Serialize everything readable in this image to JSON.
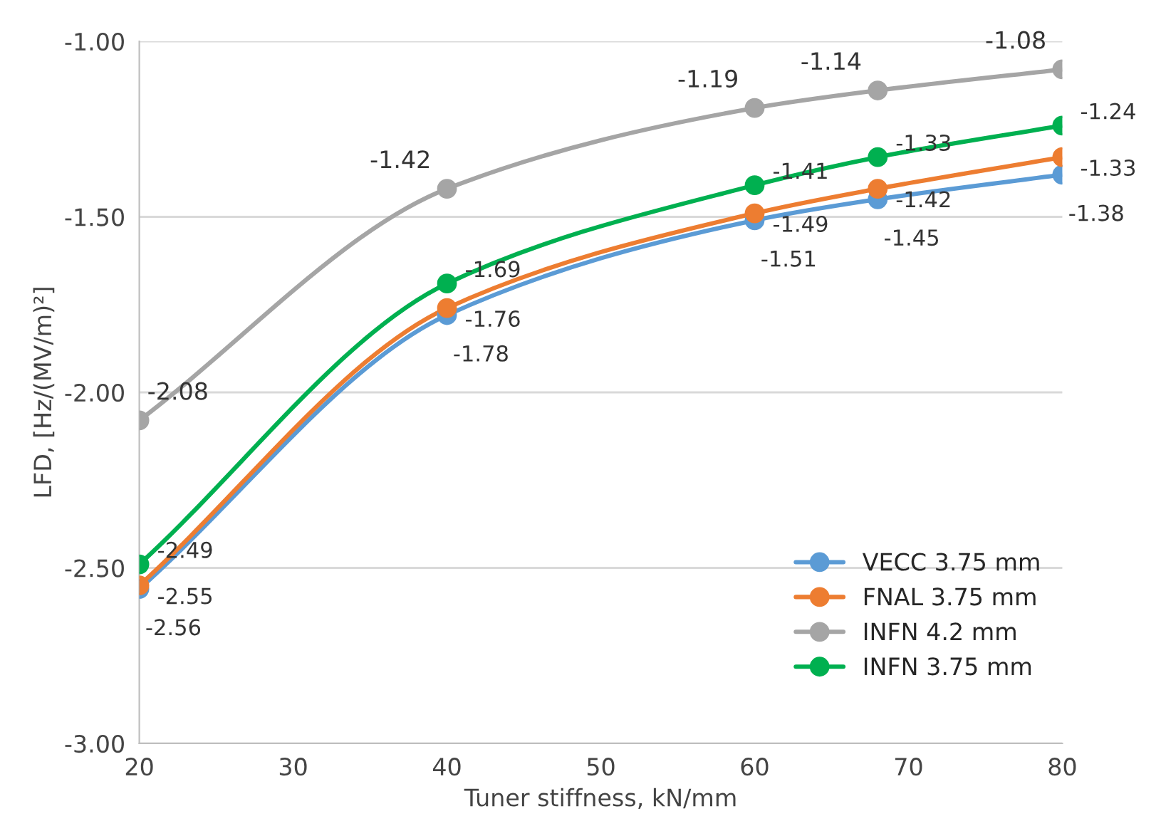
{
  "chart_data": {
    "type": "line",
    "xlabel": "Tuner stiffness, kN/mm",
    "ylabel": "LFD, [Hz/(MV/m)²]",
    "x": [
      20,
      40,
      60,
      68,
      80
    ],
    "series": [
      {
        "name": "VECC 3.75 mm",
        "color": "#5b9bd5",
        "values": [
          -2.56,
          -1.78,
          -1.51,
          -1.45,
          -1.38
        ]
      },
      {
        "name": "FNAL 3.75 mm",
        "color": "#ed7d31",
        "values": [
          -2.55,
          -1.76,
          -1.49,
          -1.42,
          -1.33
        ]
      },
      {
        "name": "INFN 4.2 mm",
        "color": "#a5a5a5",
        "values": [
          -2.08,
          -1.42,
          -1.19,
          -1.14,
          -1.08
        ]
      },
      {
        "name": "INFN 3.75 mm",
        "color": "#00b050",
        "values": [
          -2.49,
          -1.69,
          -1.41,
          -1.33,
          -1.24
        ]
      }
    ],
    "xlim": [
      20,
      80
    ],
    "xticks": [
      20,
      30,
      40,
      50,
      60,
      70,
      80
    ],
    "ylim": [
      -3,
      -1
    ],
    "yticks": [
      {
        "value": -3,
        "label": "-3.00"
      },
      {
        "value": -2.5,
        "label": "-2.50"
      },
      {
        "value": -2,
        "label": "-2.00"
      },
      {
        "value": -1.5,
        "label": "-1.50"
      },
      {
        "value": -1,
        "label": "-1.00"
      }
    ],
    "grid": "y",
    "legend": "bottom right",
    "marker": "circle",
    "line_style": "solid",
    "data_labels": true
  }
}
